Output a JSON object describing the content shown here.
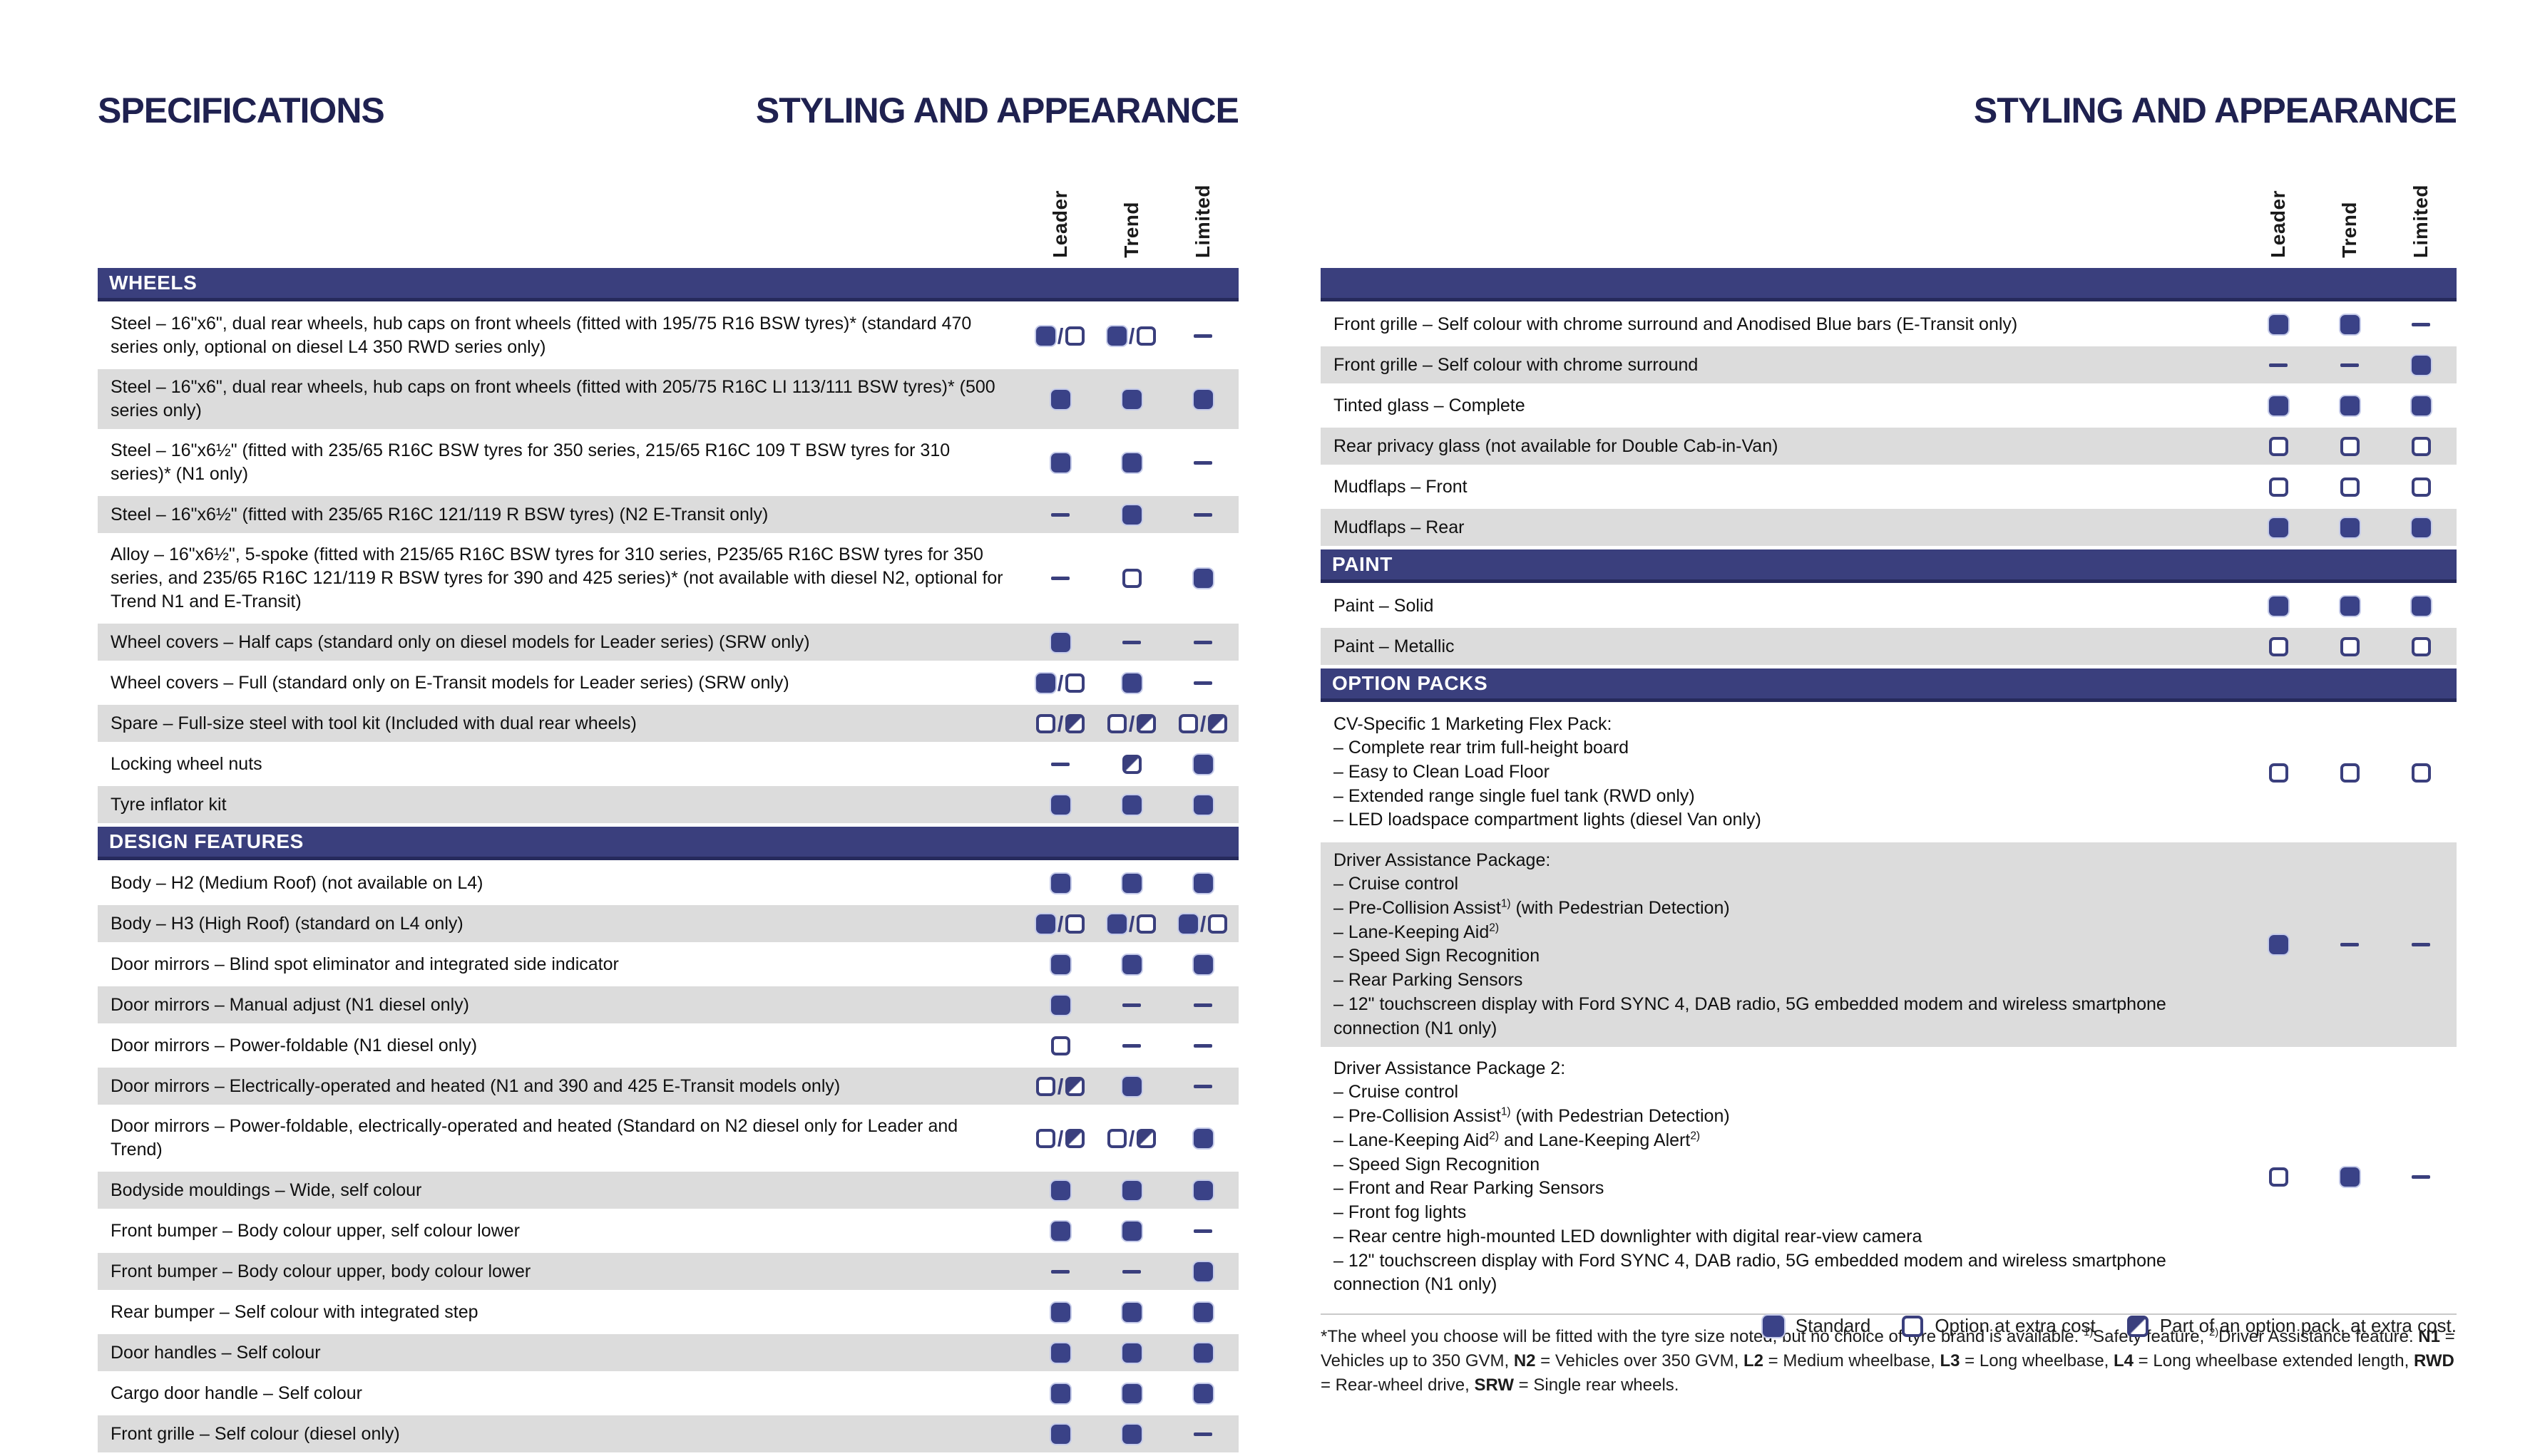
{
  "page": {
    "left": {
      "eyebrow": "SPECIFICATIONS",
      "title": "STYLING AND APPEARANCE",
      "columns": [
        "Leader",
        "Trend",
        "Limited"
      ],
      "sections": [
        {
          "title": "WHEELS",
          "rows": [
            {
              "label": "Steel – 16\"x6\", dual rear wheels, hub caps on front wheels (fitted with 195/75 R16 BSW tyres)* (standard 470 series only, optional on diesel L4 350 RWD series only)",
              "values": [
                "S/O",
                "S/O",
                "-"
              ]
            },
            {
              "label": "Steel – 16\"x6\", dual rear wheels, hub caps on front wheels (fitted with 205/75 R16C LI 113/111 BSW tyres)* (500 series only)",
              "values": [
                "S",
                "S",
                "S"
              ]
            },
            {
              "label": "Steel – 16\"x6½\" (fitted with 235/65 R16C BSW tyres for 350 series, 215/65 R16C 109 T BSW tyres for 310 series)* (N1 only)",
              "values": [
                "S",
                "S",
                "-"
              ]
            },
            {
              "label": "Steel – 16\"x6½\" (fitted with 235/65 R16C 121/119 R BSW tyres) (N2 E-Transit only)",
              "values": [
                "-",
                "S",
                "-"
              ]
            },
            {
              "label": "Alloy – 16\"x6½\", 5-spoke (fitted with 215/65 R16C BSW tyres for 310 series, P235/65 R16C BSW tyres for 350 series, and 235/65 R16C 121/119 R BSW tyres for 390 and 425 series)* (not available with diesel N2, optional for Trend N1 and E-Transit)",
              "values": [
                "-",
                "O",
                "S"
              ]
            },
            {
              "label": "Wheel covers – Half caps (standard only on diesel models for Leader series) (SRW only)",
              "values": [
                "S",
                "-",
                "-"
              ]
            },
            {
              "label": "Wheel covers – Full (standard only on E-Transit models for Leader series) (SRW only)",
              "values": [
                "S/O",
                "S",
                "-"
              ]
            },
            {
              "label": "Spare – Full-size steel with tool kit (Included with dual rear wheels)",
              "values": [
                "O/P",
                "O/P",
                "O/P"
              ]
            },
            {
              "label": "Locking wheel nuts",
              "values": [
                "-",
                "P",
                "S"
              ]
            },
            {
              "label": "Tyre inflator kit",
              "values": [
                "S",
                "S",
                "S"
              ]
            }
          ]
        },
        {
          "title": "DESIGN FEATURES",
          "rows": [
            {
              "label": "Body – H2 (Medium Roof) (not available on L4)",
              "values": [
                "S",
                "S",
                "S"
              ]
            },
            {
              "label": "Body – H3 (High Roof) (standard on L4 only)",
              "values": [
                "S/O",
                "S/O",
                "S/O"
              ]
            },
            {
              "label": "Door mirrors – Blind spot eliminator and integrated side indicator",
              "values": [
                "S",
                "S",
                "S"
              ]
            },
            {
              "label": "Door mirrors – Manual adjust (N1 diesel only)",
              "values": [
                "S",
                "-",
                "-"
              ]
            },
            {
              "label": "Door mirrors – Power-foldable (N1 diesel only)",
              "values": [
                "O",
                "-",
                "-"
              ]
            },
            {
              "label": "Door mirrors – Electrically-operated and heated (N1 and 390 and 425 E-Transit models only)",
              "values": [
                "O/P",
                "S",
                "-"
              ]
            },
            {
              "label": "Door mirrors – Power-foldable, electrically-operated and heated (Standard on N2 diesel only for Leader and Trend)",
              "values": [
                "O/P",
                "O/P",
                "S"
              ]
            },
            {
              "label": "Bodyside mouldings – Wide, self colour",
              "values": [
                "S",
                "S",
                "S"
              ]
            },
            {
              "label": "Front bumper – Body colour upper, self colour lower",
              "values": [
                "S",
                "S",
                "-"
              ]
            },
            {
              "label": "Front bumper – Body colour upper, body colour lower",
              "values": [
                "-",
                "-",
                "S"
              ]
            },
            {
              "label": "Rear bumper – Self colour with integrated step",
              "values": [
                "S",
                "S",
                "S"
              ]
            },
            {
              "label": "Door handles – Self colour",
              "values": [
                "S",
                "S",
                "S"
              ]
            },
            {
              "label": "Cargo door handle – Self colour",
              "values": [
                "S",
                "S",
                "S"
              ]
            },
            {
              "label": "Front grille – Self colour (diesel only)",
              "values": [
                "S",
                "S",
                "-"
              ]
            }
          ]
        }
      ]
    },
    "right": {
      "title": "STYLING AND APPEARANCE",
      "columns": [
        "Leader",
        "Trend",
        "Limited"
      ],
      "sections": [
        {
          "title": "",
          "rows": [
            {
              "label": "Front grille – Self colour with chrome surround and Anodised Blue bars (E-Transit only)",
              "values": [
                "S",
                "S",
                "-"
              ]
            },
            {
              "label": "Front grille – Self colour with chrome surround",
              "values": [
                "-",
                "-",
                "S"
              ]
            },
            {
              "label": "Tinted glass – Complete",
              "values": [
                "S",
                "S",
                "S"
              ]
            },
            {
              "label": "Rear privacy glass (not available for Double Cab-in-Van)",
              "values": [
                "O",
                "O",
                "O"
              ]
            },
            {
              "label": "Mudflaps – Front",
              "values": [
                "O",
                "O",
                "O"
              ]
            },
            {
              "label": "Mudflaps – Rear",
              "values": [
                "S",
                "S",
                "S"
              ]
            }
          ]
        },
        {
          "title": "PAINT",
          "rows": [
            {
              "label": "Paint – Solid",
              "values": [
                "S",
                "S",
                "S"
              ]
            },
            {
              "label": "Paint – Metallic",
              "values": [
                "O",
                "O",
                "O"
              ]
            }
          ]
        },
        {
          "title": "OPTION PACKS",
          "rows": [
            {
              "label": "CV-Specific 1 Marketing Flex Pack:",
              "sub": [
                "– Complete rear trim full-height board",
                "– Easy to Clean Load Floor",
                "– Extended range single fuel tank (RWD only)",
                "– LED loadspace compartment lights (diesel Van only)"
              ],
              "values": [
                "O",
                "O",
                "O"
              ]
            },
            {
              "label": "Driver Assistance Package:",
              "sub": [
                "– Cruise control",
                "– Pre-Collision Assist^{1)} (with Pedestrian Detection)",
                "– Lane-Keeping Aid^{2)}",
                "– Speed Sign Recognition",
                "– Rear Parking Sensors",
                "– 12\" touchscreen display with Ford SYNC 4, DAB radio, 5G embedded modem and wireless smartphone connection (N1 only)"
              ],
              "values": [
                "S",
                "-",
                "-"
              ]
            },
            {
              "label": "Driver Assistance Package 2:",
              "sub": [
                "– Cruise control",
                "– Pre-Collision Assist^{1)} (with Pedestrian Detection)",
                "– Lane-Keeping Aid^{2)} and Lane-Keeping Alert^{2)}",
                "– Speed Sign Recognition",
                "– Front and Rear Parking Sensors",
                "– Front fog lights",
                "– Rear centre high-mounted LED downlighter with digital rear-view camera",
                "– 12\" touchscreen display with Ford SYNC 4, DAB radio, 5G embedded modem and wireless smartphone connection (N1 only)"
              ],
              "values": [
                "O",
                "S",
                "-"
              ]
            }
          ]
        }
      ],
      "footnote": [
        {
          "t": "*The wheel you choose will be fitted with the tyre size noted, but no choice of tyre brand is available. "
        },
        {
          "t": "1)",
          "sup": true
        },
        {
          "t": "Safety feature, "
        },
        {
          "t": "2)",
          "sup": true
        },
        {
          "t": "Driver Assistance feature. "
        },
        {
          "t": "N1",
          "b": true
        },
        {
          "t": " = Vehicles up to 350 GVM, "
        },
        {
          "t": "N2",
          "b": true
        },
        {
          "t": " = Vehicles over 350 GVM, "
        },
        {
          "t": "L2",
          "b": true
        },
        {
          "t": " = Medium wheelbase, "
        },
        {
          "t": "L3",
          "b": true
        },
        {
          "t": " = Long wheelbase, "
        },
        {
          "t": "L4",
          "b": true
        },
        {
          "t": " = Long wheelbase extended length, "
        },
        {
          "t": "RWD",
          "b": true
        },
        {
          "t": " = Rear-wheel drive, "
        },
        {
          "t": "SRW",
          "b": true
        },
        {
          "t": " = Single rear wheels."
        }
      ]
    },
    "legend": {
      "items": [
        {
          "symbol": "S",
          "label": "Standard"
        },
        {
          "symbol": "O",
          "label": "Option at extra cost"
        },
        {
          "symbol": "P",
          "label": "Part of an option pack, at extra cost."
        }
      ]
    },
    "symbol_key": {
      "S": "standard-filled-square",
      "O": "option-open-square",
      "P": "option-pack-diagonal-square",
      "-": "not-available-dash"
    },
    "colors": {
      "section_bar_navy": "#3a3f7d",
      "symbol_fill_navy": "#3a4287",
      "row_alt_grey": "#dcdcdc",
      "title_navy": "#1f2150"
    }
  }
}
